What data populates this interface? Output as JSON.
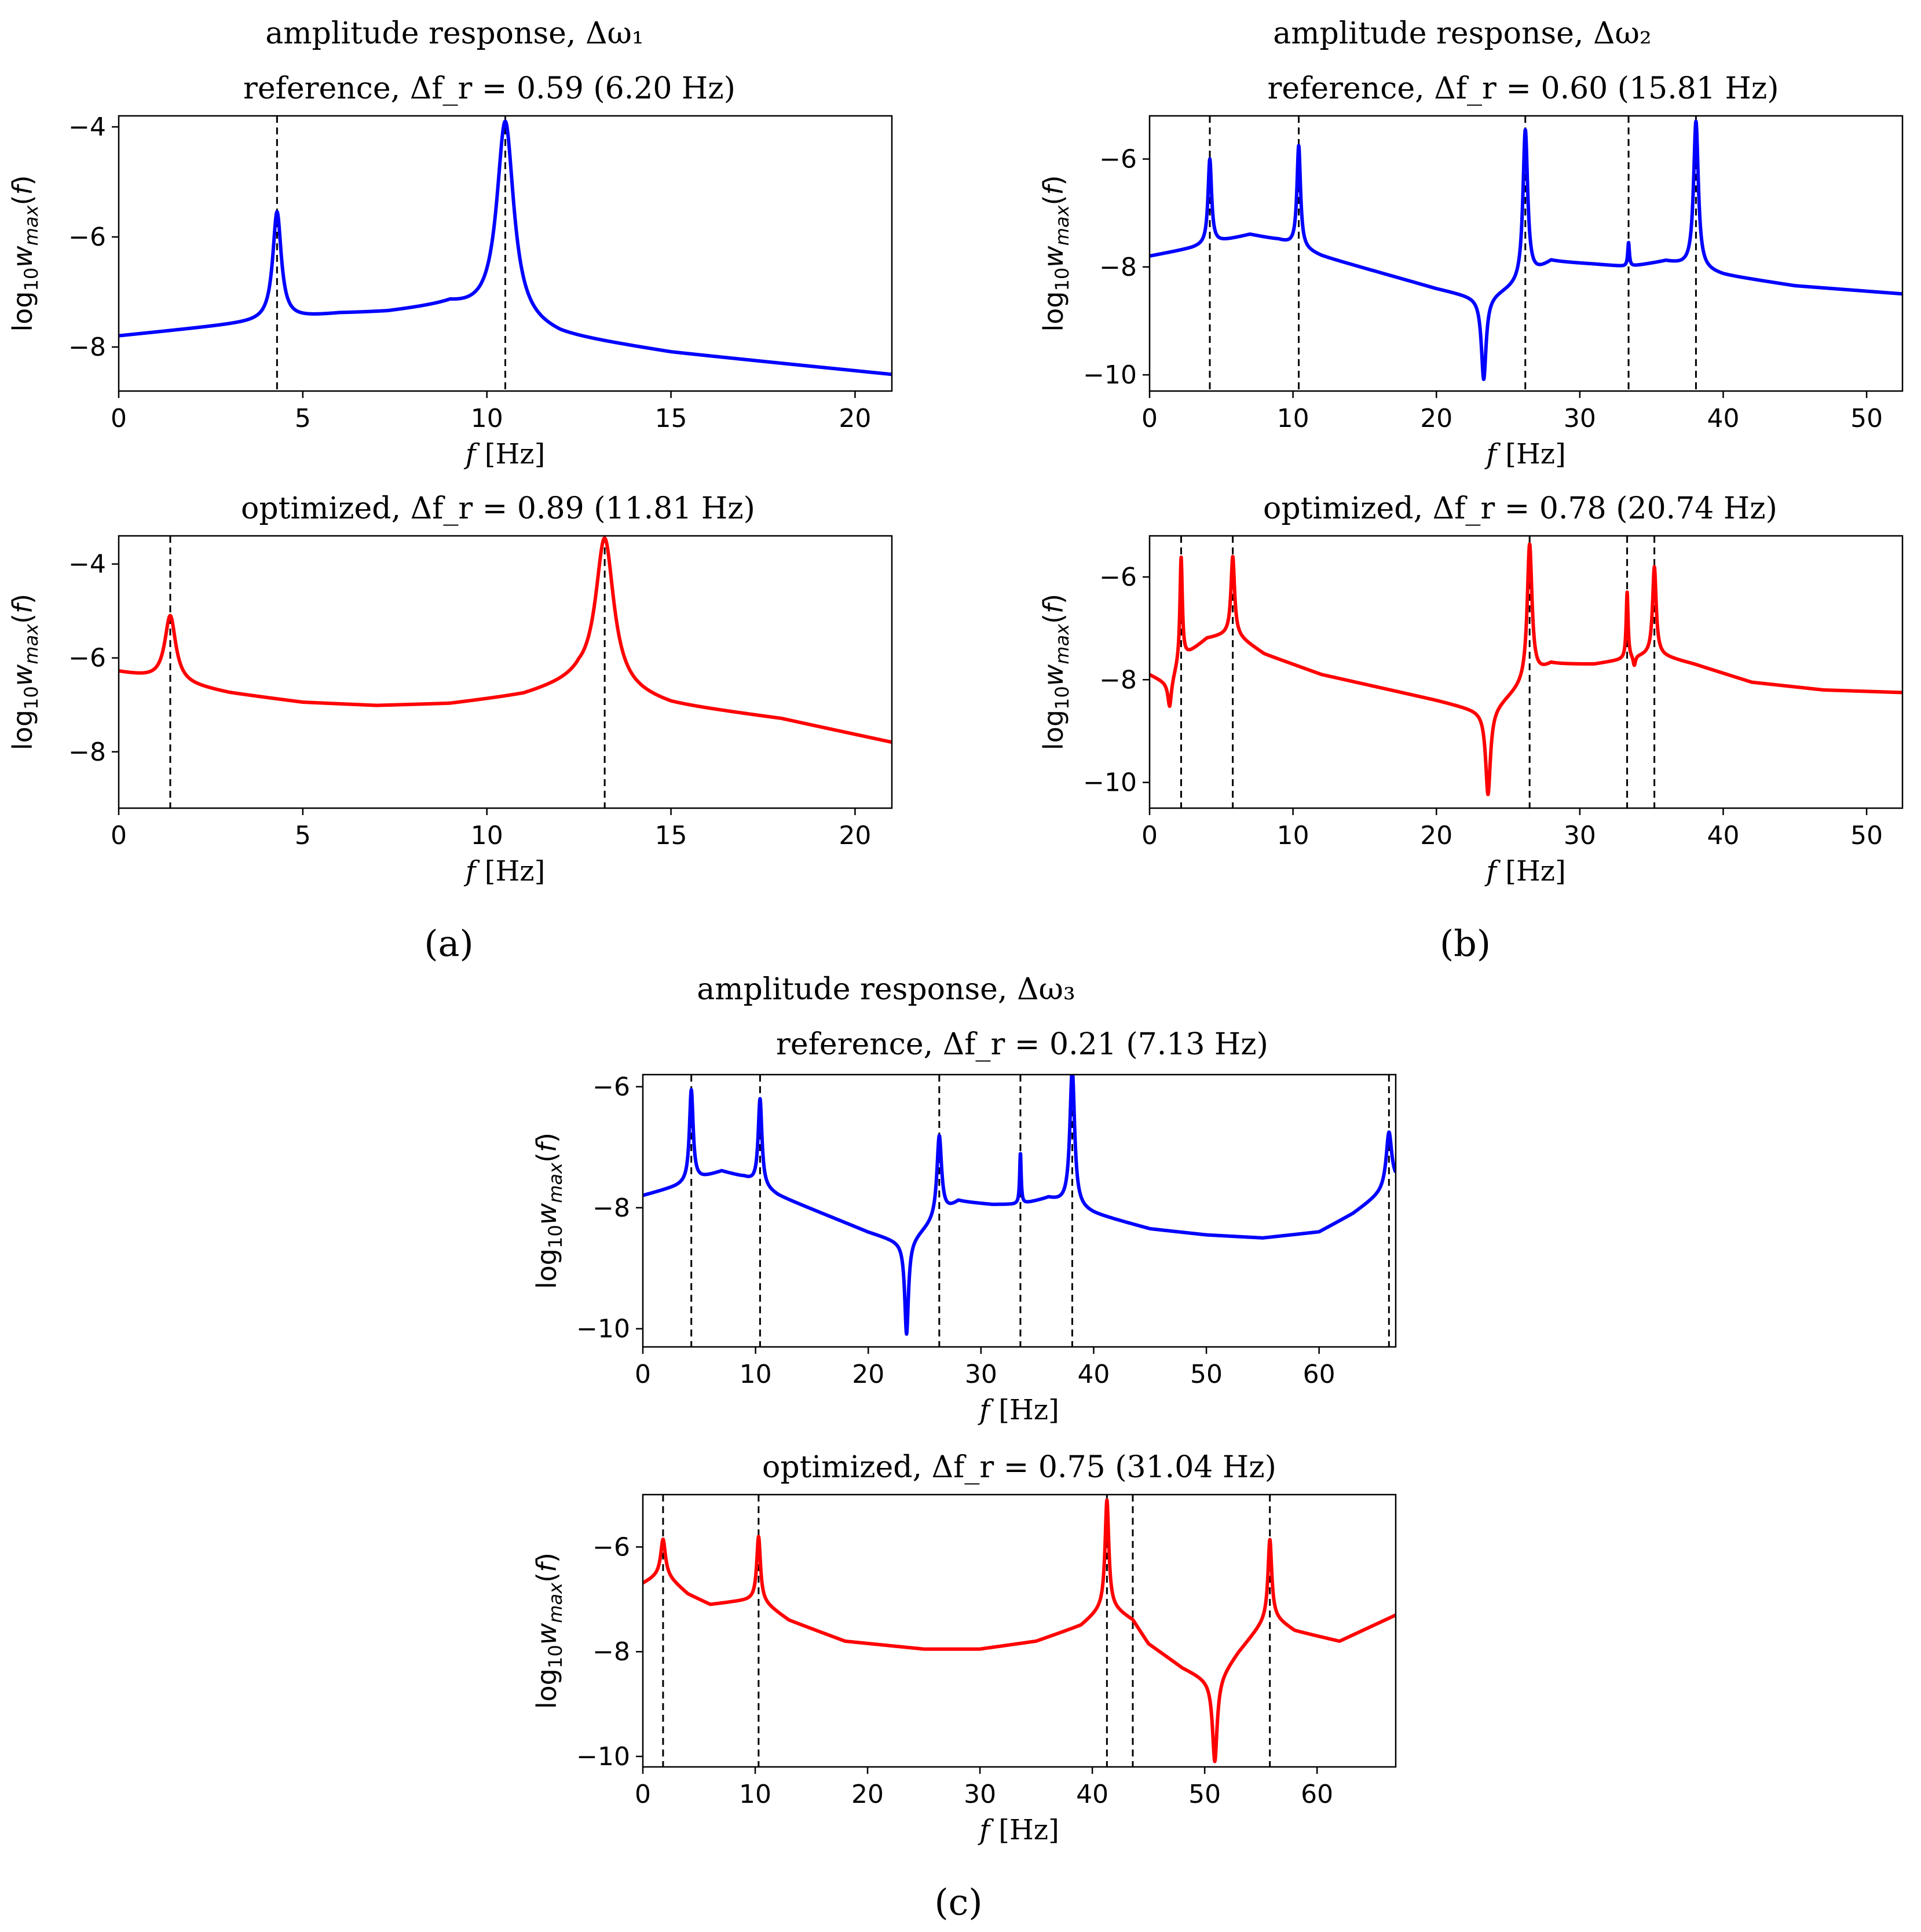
{
  "figure": {
    "panel_labels": [
      "(a)",
      "(b)",
      "(c)"
    ],
    "colors": {
      "reference": "#0000ff",
      "optimized": "#ff0000",
      "guides": "#000000"
    }
  },
  "chart_data": [
    {
      "id": "a-ref",
      "type": "line",
      "group": "a",
      "title_lines": [
        "amplitude response, Δω₁",
        "reference, Δf_r = 0.59 (6.20 Hz)"
      ],
      "xlabel": "f [Hz]",
      "ylabel": "log10 w_max(f)",
      "xlim": [
        0,
        21
      ],
      "ylim": [
        -8.8,
        -3.8
      ],
      "xticks": [
        0,
        5,
        10,
        15,
        20
      ],
      "yticks": [
        -4,
        -6,
        -8
      ],
      "color": "#0000ff",
      "base": {
        "x": [
          0,
          3,
          6,
          7.3,
          9,
          12,
          15,
          18,
          21
        ],
        "y": [
          -7.8,
          -7.6,
          -7.4,
          -7.37,
          -7.25,
          -7.8,
          -8.1,
          -8.3,
          -8.5
        ]
      },
      "peaks": [
        {
          "f": 4.3,
          "peak": -5.55,
          "amp": 0.14
        },
        {
          "f": 10.5,
          "peak": -3.9,
          "amp": 0.28
        }
      ],
      "antires": [],
      "dashed": [
        4.3,
        10.5
      ]
    },
    {
      "id": "a-opt",
      "type": "line",
      "group": "a",
      "title_lines": [
        "optimized, Δf_r = 0.89 (11.81 Hz)"
      ],
      "xlabel": "f [Hz]",
      "ylabel": "log10 w_max(f)",
      "xlim": [
        0,
        21
      ],
      "ylim": [
        -9.2,
        -3.4
      ],
      "xticks": [
        0,
        5,
        10,
        15,
        20
      ],
      "yticks": [
        -4,
        -6,
        -8
      ],
      "color": "#ff0000",
      "base": {
        "x": [
          0,
          3,
          5,
          7,
          9,
          11,
          12.5,
          15,
          18,
          21
        ],
        "y": [
          -6.3,
          -6.75,
          -6.95,
          -7.02,
          -6.98,
          -6.8,
          -6.5,
          -7.0,
          -7.3,
          -7.8
        ]
      },
      "peaks": [
        {
          "f": 1.4,
          "peak": -5.1,
          "amp": 0.18
        },
        {
          "f": 13.2,
          "peak": -3.45,
          "amp": 0.3
        }
      ],
      "antires": [],
      "dashed": [
        1.4,
        13.2
      ]
    },
    {
      "id": "b-ref",
      "type": "line",
      "group": "b",
      "title_lines": [
        "amplitude response, Δω₂",
        "reference, Δf_r = 0.60 (15.81 Hz)"
      ],
      "xlabel": "f [Hz]",
      "ylabel": "log10 w_max(f)",
      "xlim": [
        0,
        52.5
      ],
      "ylim": [
        -10.3,
        -5.2
      ],
      "xticks": [
        0,
        10,
        20,
        30,
        40,
        50
      ],
      "yticks": [
        -6,
        -8,
        -10
      ],
      "color": "#0000ff",
      "base": {
        "x": [
          0,
          3,
          7,
          9,
          12,
          16,
          20,
          23.3,
          26,
          28,
          31,
          33.4,
          36,
          40,
          45,
          52.5
        ],
        "y": [
          -7.8,
          -7.65,
          -7.4,
          -7.5,
          -7.8,
          -8.1,
          -8.4,
          -8.6,
          -8.3,
          -7.9,
          -7.95,
          -8.0,
          -7.9,
          -8.15,
          -8.35,
          -8.5
        ]
      },
      "peaks": [
        {
          "f": 4.2,
          "peak": -6.0,
          "amp": 0.15
        },
        {
          "f": 10.4,
          "peak": -5.75,
          "amp": 0.15
        },
        {
          "f": 26.2,
          "peak": -5.45,
          "amp": 0.2
        },
        {
          "f": 33.4,
          "peak": -7.55,
          "amp": 0.07
        },
        {
          "f": 38.1,
          "peak": -5.3,
          "amp": 0.2
        }
      ],
      "antires": [
        {
          "f": 23.3,
          "depth": 1.5,
          "amp": 0.2
        }
      ],
      "dashed": [
        4.2,
        10.4,
        26.2,
        33.4,
        38.1
      ]
    },
    {
      "id": "b-opt",
      "type": "line",
      "group": "b",
      "title_lines": [
        "optimized, Δf_r = 0.78 (20.74 Hz)"
      ],
      "xlabel": "f [Hz]",
      "ylabel": "log10 w_max(f)",
      "xlim": [
        0,
        52.5
      ],
      "ylim": [
        -10.5,
        -5.2
      ],
      "xticks": [
        0,
        10,
        20,
        30,
        40,
        50
      ],
      "yticks": [
        -6,
        -8,
        -10
      ],
      "color": "#ff0000",
      "base": {
        "x": [
          0,
          1.4,
          2.2,
          4,
          5.8,
          8,
          12,
          16,
          20,
          23.6,
          26.5,
          28,
          31,
          33.3,
          35.2,
          38,
          42,
          47,
          52.5
        ],
        "y": [
          -7.9,
          -8.1,
          -7.6,
          -7.2,
          -7.1,
          -7.5,
          -7.9,
          -8.15,
          -8.4,
          -8.65,
          -8.0,
          -7.7,
          -7.7,
          -7.6,
          -7.5,
          -7.7,
          -8.05,
          -8.2,
          -8.25
        ]
      },
      "peaks": [
        {
          "f": 2.2,
          "peak": -5.6,
          "amp": 0.1
        },
        {
          "f": 5.8,
          "peak": -5.6,
          "amp": 0.15
        },
        {
          "f": 26.5,
          "peak": -5.35,
          "amp": 0.2
        },
        {
          "f": 33.3,
          "peak": -6.3,
          "amp": 0.08
        },
        {
          "f": 35.2,
          "peak": -5.8,
          "amp": 0.15
        }
      ],
      "antires": [
        {
          "f": 1.4,
          "depth": 0.45,
          "amp": 0.15
        },
        {
          "f": 23.6,
          "depth": 1.6,
          "amp": 0.2
        },
        {
          "f": 33.8,
          "depth": 0.2,
          "amp": 0.1
        }
      ],
      "dashed": [
        2.2,
        5.8,
        26.5,
        33.3,
        35.2
      ]
    },
    {
      "id": "c-ref",
      "type": "line",
      "group": "c",
      "title_lines": [
        "amplitude response, Δω₃",
        "reference, Δf_r = 0.21 (7.13 Hz)"
      ],
      "xlabel": "f [Hz]",
      "ylabel": "log10 w_max(f)",
      "xlim": [
        0,
        66.8
      ],
      "ylim": [
        -10.3,
        -5.8
      ],
      "xticks": [
        0,
        10,
        20,
        30,
        40,
        50,
        60
      ],
      "yticks": [
        -6,
        -8,
        -10
      ],
      "color": "#0000ff",
      "base": {
        "x": [
          0,
          3,
          7,
          9,
          12,
          16,
          20,
          23.4,
          26,
          28,
          31,
          33.5,
          36,
          40,
          45,
          50,
          55,
          60,
          63,
          66.8
        ],
        "y": [
          -7.8,
          -7.65,
          -7.4,
          -7.5,
          -7.8,
          -8.1,
          -8.4,
          -8.6,
          -8.2,
          -7.9,
          -7.95,
          -7.95,
          -7.85,
          -8.1,
          -8.35,
          -8.45,
          -8.5,
          -8.4,
          -8.1,
          -7.6
        ]
      },
      "peaks": [
        {
          "f": 4.3,
          "peak": -6.05,
          "amp": 0.2
        },
        {
          "f": 10.4,
          "peak": -6.2,
          "amp": 0.2
        },
        {
          "f": 26.3,
          "peak": -6.8,
          "amp": 0.25
        },
        {
          "f": 33.5,
          "peak": -7.1,
          "amp": 0.08
        },
        {
          "f": 38.1,
          "peak": -5.7,
          "amp": 0.25
        },
        {
          "f": 66.2,
          "peak": -6.75,
          "amp": 0.3
        }
      ],
      "antires": [
        {
          "f": 23.4,
          "depth": 1.5,
          "amp": 0.2
        }
      ],
      "dashed": [
        4.3,
        10.4,
        26.3,
        33.5,
        38.1,
        66.2
      ]
    },
    {
      "id": "c-opt",
      "type": "line",
      "group": "c",
      "title_lines": [
        "optimized, Δf_r = 0.75 (31.04 Hz)"
      ],
      "xlabel": "f [Hz]",
      "ylabel": "log10 w_max(f)",
      "xlim": [
        0,
        67
      ],
      "ylim": [
        -10.2,
        -5.0
      ],
      "xticks": [
        0,
        10,
        20,
        30,
        40,
        50,
        60
      ],
      "yticks": [
        -6,
        -8,
        -10
      ],
      "color": "#ff0000",
      "base": {
        "x": [
          0,
          1.8,
          4,
          6,
          8,
          10.3,
          13,
          18,
          25,
          30,
          35,
          39,
          41.3,
          43.6,
          45,
          48,
          50.9,
          53,
          55.8,
          58,
          62,
          67
        ],
        "y": [
          -6.7,
          -6.5,
          -6.9,
          -7.1,
          -7.05,
          -7.0,
          -7.4,
          -7.8,
          -7.95,
          -7.95,
          -7.8,
          -7.5,
          -7.1,
          -7.4,
          -7.85,
          -8.3,
          -8.6,
          -8.0,
          -7.3,
          -7.6,
          -7.8,
          -7.3
        ]
      },
      "peaks": [
        {
          "f": 1.8,
          "peak": -5.85,
          "amp": 0.25
        },
        {
          "f": 10.3,
          "peak": -5.8,
          "amp": 0.2
        },
        {
          "f": 41.3,
          "peak": -5.1,
          "amp": 0.2
        },
        {
          "f": 55.8,
          "peak": -5.85,
          "amp": 0.2
        }
      ],
      "antires": [
        {
          "f": 50.9,
          "depth": 1.5,
          "amp": 0.25
        }
      ],
      "dashed": [
        1.8,
        10.3,
        41.3,
        43.6,
        55.8
      ]
    }
  ]
}
